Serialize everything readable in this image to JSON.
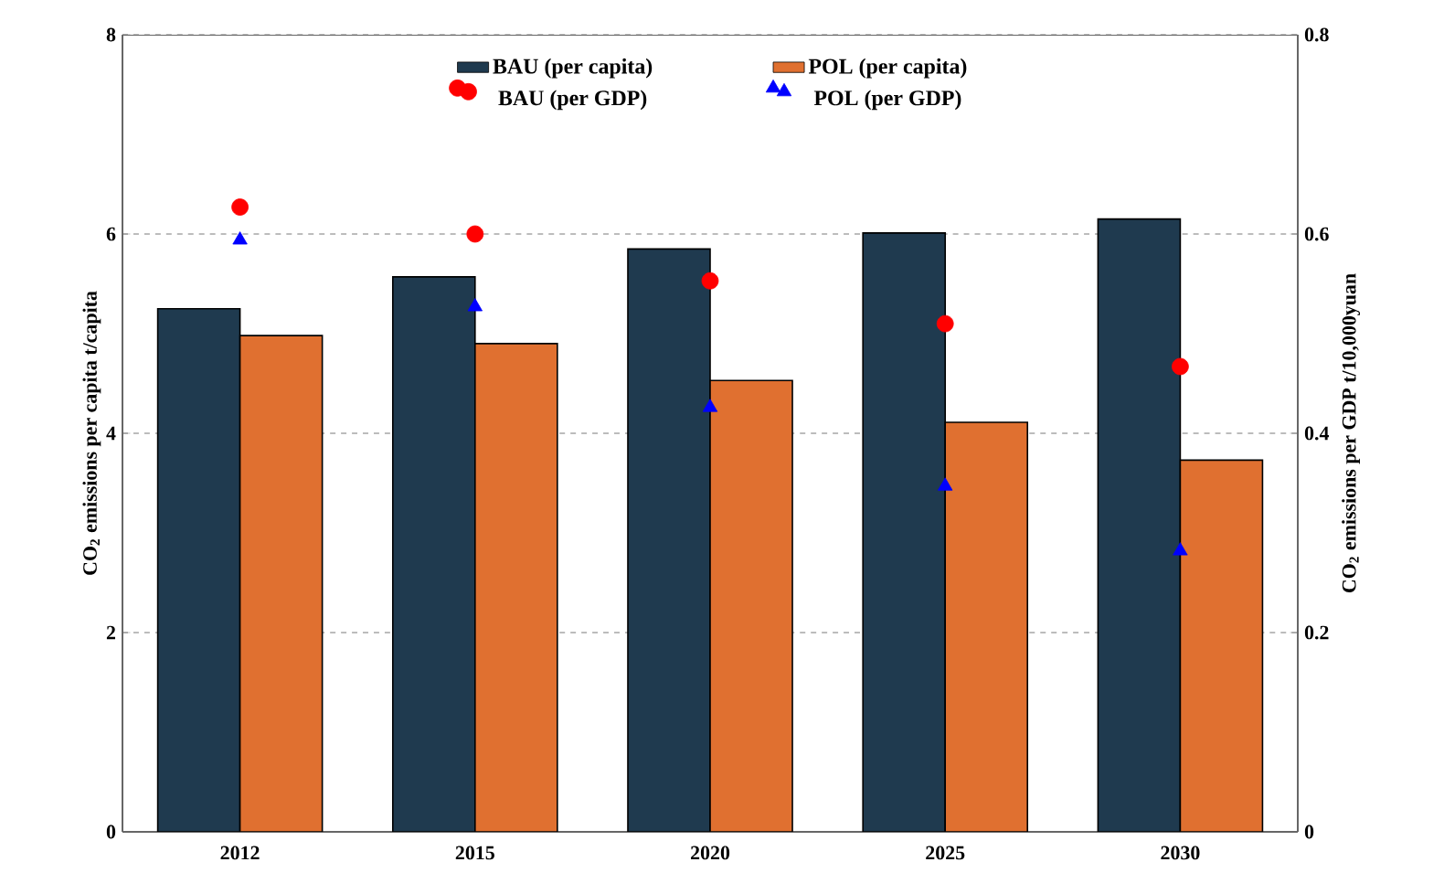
{
  "chart_data": {
    "type": "bar",
    "categories": [
      "2012",
      "2015",
      "2020",
      "2025",
      "2030"
    ],
    "ylabel": "CO$_{2}$ emissions per capita  t/capita",
    "y2label": "CO$_{2}$ emissions per GDP  t/10,000yuan",
    "ylim": [
      0,
      8
    ],
    "yticks": [
      0,
      2,
      4,
      6,
      8
    ],
    "y2lim": [
      0,
      0.8
    ],
    "y2ticks": [
      0,
      0.2,
      0.4,
      0.6,
      0.8
    ],
    "grid": "y",
    "legend": "top",
    "series": [
      {
        "name": "BAU (per capita)",
        "color": "#1f3a4f",
        "values": [
          5.25,
          5.57,
          5.85,
          6.01,
          6.15
        ]
      },
      {
        "name": "POL (per capita)",
        "color": "#e07030",
        "values": [
          4.98,
          4.9,
          4.53,
          4.11,
          3.73
        ]
      },
      {
        "name": "BAU (per GDP)",
        "type": "scatter",
        "axis": "y2",
        "marker": "circle",
        "color": "#ff0000",
        "values": [
          0.627,
          0.6,
          0.553,
          0.51,
          0.467
        ]
      },
      {
        "name": "POL (per GDP)",
        "type": "scatter",
        "axis": "y2",
        "marker": "triangle",
        "color": "#0000ff",
        "values": [
          0.594,
          0.527,
          0.426,
          0.347,
          0.282
        ]
      }
    ]
  }
}
